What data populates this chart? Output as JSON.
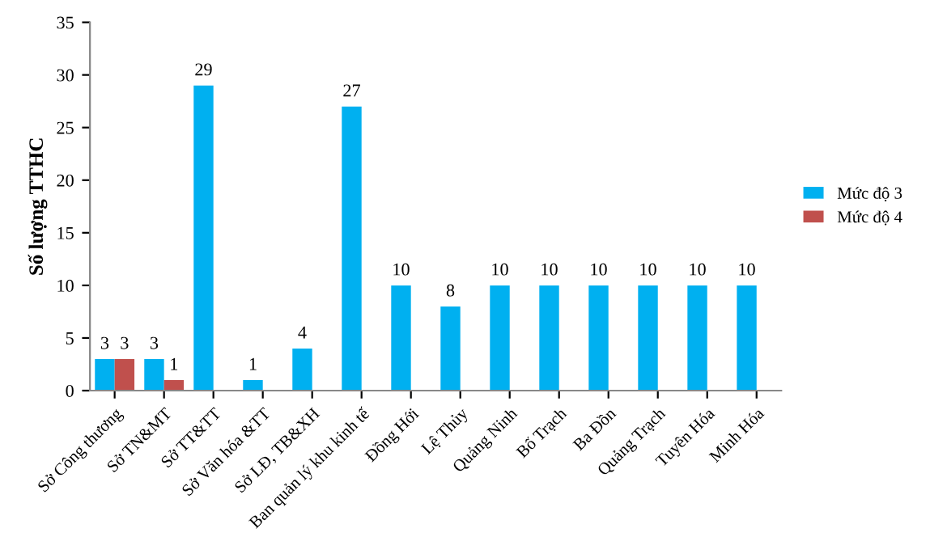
{
  "chart_data": {
    "type": "bar",
    "ylabel": "Số lượng TTHC",
    "categories": [
      "Sở Công thương",
      "Sở TN&MT",
      "Sở TT&TT",
      "Sở Văn hóa &TT",
      "Sở LĐ, TB&XH",
      "Ban quản lý khu kinh tế",
      "Đồng Hới",
      "Lệ Thủy",
      "Quảng Ninh",
      "Bố Trạch",
      "Ba Đồn",
      "Quảng Trạch",
      "Tuyên Hóa",
      "Minh Hóa"
    ],
    "series": [
      {
        "name": "Mức độ 3",
        "color": "#00b0f0",
        "values": [
          3,
          3,
          29,
          1,
          4,
          27,
          10,
          8,
          10,
          10,
          10,
          10,
          10,
          10
        ],
        "value_labels": [
          "3",
          "3",
          "29",
          "1",
          "4",
          "27",
          "10",
          "8",
          "10",
          "10",
          "10",
          "10",
          "10",
          "10"
        ]
      },
      {
        "name": "Mức độ 4",
        "color": "#c0504d",
        "values": [
          3,
          1,
          null,
          null,
          null,
          null,
          null,
          null,
          null,
          null,
          null,
          null,
          null,
          null
        ],
        "value_labels": [
          "3",
          "1",
          null,
          null,
          null,
          null,
          null,
          null,
          null,
          null,
          null,
          null,
          null,
          null
        ]
      }
    ],
    "ylim": [
      0,
      35
    ],
    "yticks": [
      0,
      5,
      10,
      15,
      20,
      25,
      30,
      35
    ],
    "legend": "right",
    "grid": false
  }
}
